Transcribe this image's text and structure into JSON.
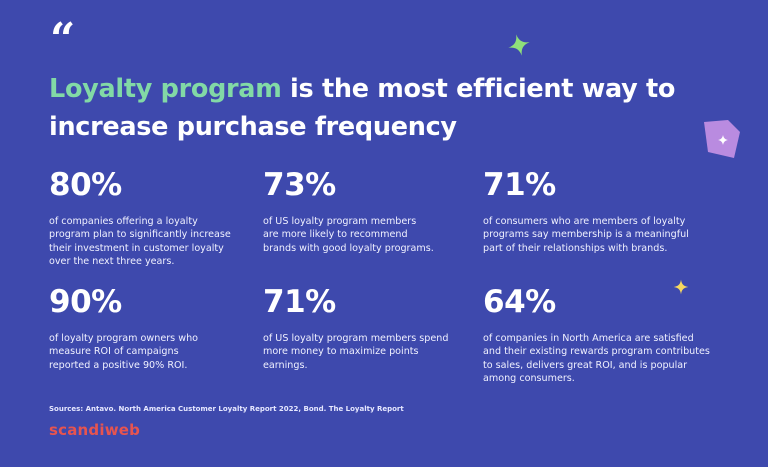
{
  "quote_mark": "“",
  "headline": {
    "accent": "Loyalty program",
    "line1_rest": " is the most efficient way to",
    "line2": "increase purchase frequency"
  },
  "colors": {
    "background": "#3e49ad",
    "accent": "#82d9a6",
    "logo": "#e7544f",
    "sparkle_green": "#8fe07a",
    "sparkle_yellow": "#f6d860",
    "gem": "#b98be0"
  },
  "stats": [
    {
      "value": "80%",
      "lines": [
        "of companies offering a loyalty",
        "program plan to significantly increase",
        "their investment in customer loyalty",
        "over the next three years."
      ]
    },
    {
      "value": "73%",
      "lines": [
        "of US loyalty program members",
        "are more likely to recommend",
        "brands with good loyalty programs."
      ]
    },
    {
      "value": "71%",
      "lines": [
        "of consumers who are members of loyalty",
        "programs say membership is a meaningful",
        "part of their relationships with brands."
      ]
    },
    {
      "value": "90%",
      "lines": [
        "of loyalty program owners who",
        "measure ROI of campaigns",
        "reported a positive 90% ROI."
      ]
    },
    {
      "value": "71%",
      "lines": [
        "of US loyalty program members spend",
        "more money to maximize points",
        "earnings."
      ]
    },
    {
      "value": "64%",
      "lines": [
        "of companies in North America are satisfied",
        "and their existing rewards program contributes",
        "to sales, delivers great ROI, and is popular",
        "among consumers."
      ]
    }
  ],
  "sources": "Sources: Antavo. North America Customer Loyalty Report 2022,  Bond. The Loyalty Report",
  "logo": "scandiweb"
}
